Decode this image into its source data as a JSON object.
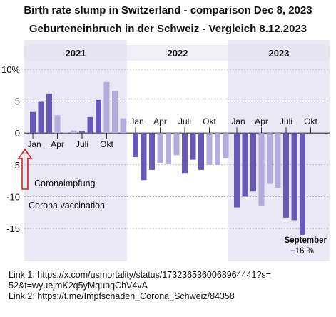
{
  "title": "Birth rate slump in Switzerland - comparison Dec 8, 2023",
  "subtitle": "Geburteneinbruch in der Schweiz - Vergleich 8.12.2023",
  "chart_data": {
    "type": "bar",
    "ylim": [
      -19,
      12
    ],
    "yticks": [
      {
        "value": 10,
        "label": "10%"
      },
      {
        "value": 5,
        "label": "5"
      },
      {
        "value": 0,
        "label": "0"
      },
      {
        "value": -5,
        "label": "-5"
      },
      {
        "value": -10,
        "label": "-10"
      },
      {
        "value": -15,
        "label": "-15"
      }
    ],
    "grid": true,
    "month_tick_labels": [
      "Jan",
      "Apr",
      "Juli",
      "Okt"
    ],
    "panels": [
      {
        "year": "2021",
        "shaded": true,
        "values": [
          3.3,
          4.9,
          6.2,
          2.8,
          0.1,
          0.4,
          0.3,
          2.5,
          5.2,
          8.0,
          6.6,
          2.3
        ]
      },
      {
        "year": "2022",
        "shaded": false,
        "values": [
          -3.8,
          -7.4,
          -5.8,
          -4.7,
          -4.9,
          -3.5,
          -6.4,
          -4.2,
          -5.8,
          -5.0,
          -5.0,
          -3.9
        ]
      },
      {
        "year": "2023",
        "shaded": true,
        "values": [
          -11.7,
          -10.0,
          -9.2,
          -11.4,
          -8.0,
          -8.6,
          -13.3,
          -13.7,
          -16.0
        ]
      }
    ],
    "colors": {
      "dark_bar": "#6a58b8",
      "light_bar": "#b5abdc",
      "panel_shade": "#ebe8f5",
      "arrow": "#d62020"
    },
    "annotations": {
      "vaccination_de": "Coronaimpfung",
      "vaccination_en": "Corona vaccination",
      "september_label": "September",
      "september_value": "−16 %"
    }
  },
  "links": [
    "Link 1: https://x.com/usmortality/status/1732365360068964441?s=",
    "52&t=wyuejmK2q5yMqupqChV4vA",
    "Link 2: https://t.me/Impfschaden_Corona_Schweiz/84358"
  ]
}
